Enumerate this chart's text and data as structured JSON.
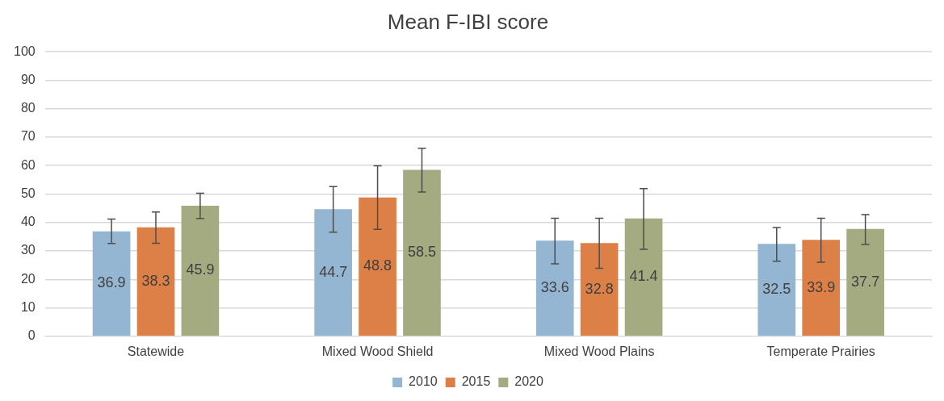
{
  "chart_data": {
    "type": "bar",
    "title": "Mean F-IBI score",
    "categories": [
      "Statewide",
      "Mixed Wood Shield",
      "Mixed Wood Plains",
      "Temperate Prairies"
    ],
    "series": [
      {
        "name": "2010",
        "color": "#94b6d2",
        "values": [
          36.9,
          44.7,
          33.6,
          32.5
        ],
        "errors": [
          [
            32.6,
            41.2
          ],
          [
            36.6,
            52.6
          ],
          [
            25.5,
            41.5
          ],
          [
            26.4,
            38.2
          ]
        ]
      },
      {
        "name": "2015",
        "color": "#dd8047",
        "values": [
          38.3,
          48.8,
          32.8,
          33.9
        ],
        "errors": [
          [
            32.7,
            43.7
          ],
          [
            37.6,
            59.9
          ],
          [
            23.9,
            41.5
          ],
          [
            26.0,
            41.5
          ]
        ]
      },
      {
        "name": "2020",
        "color": "#a5ab81",
        "values": [
          45.9,
          58.5,
          41.4,
          37.7
        ],
        "errors": [
          [
            41.4,
            50.3
          ],
          [
            50.7,
            66.1
          ],
          [
            30.6,
            51.9
          ],
          [
            32.3,
            42.8
          ]
        ]
      }
    ],
    "ylim": [
      0,
      100
    ],
    "yticks": [
      0,
      10,
      20,
      30,
      40,
      50,
      60,
      70,
      80,
      90,
      100
    ],
    "grid": "y",
    "legend": "bottom",
    "data_labels": true
  }
}
